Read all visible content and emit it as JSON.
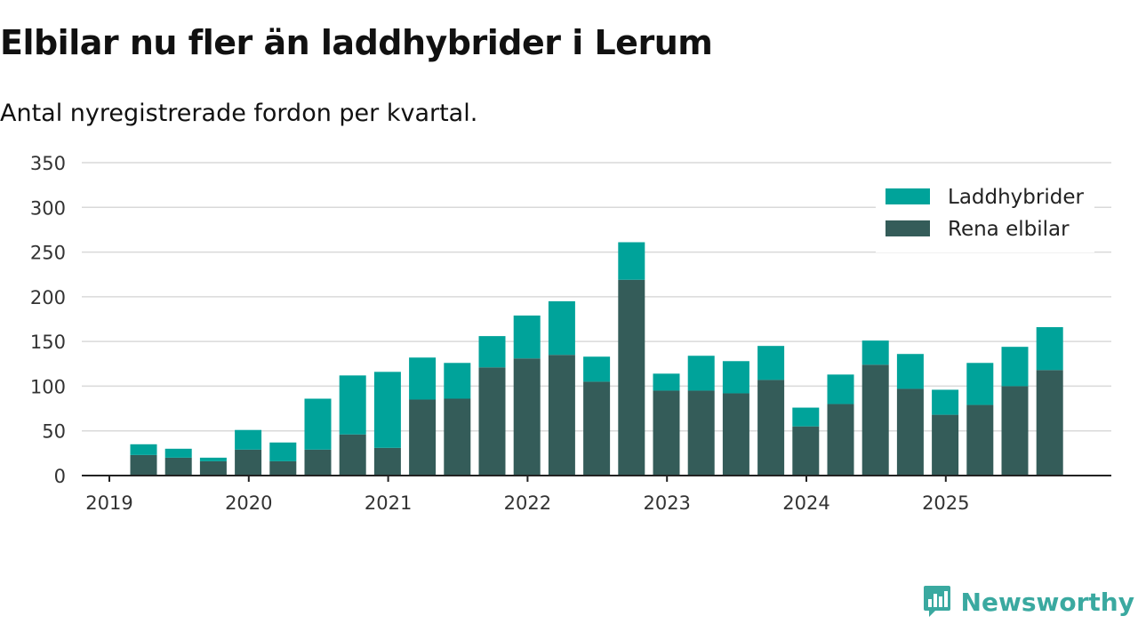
{
  "title": "Elbilar nu fler än laddhybrider i Lerum",
  "subtitle": "Antal nyregistrerade fordon per kvartal.",
  "brand": "Newsworthy",
  "colors": {
    "laddhybrider": "#00a39a",
    "elbilar": "#345c59",
    "grid": "#d9d9d9",
    "axis": "#222222",
    "brand": "#3aa9a0"
  },
  "chart_data": {
    "type": "bar",
    "stacked": true,
    "categories": [
      "2019 Q2",
      "2019 Q3",
      "2019 Q4",
      "2020 Q1",
      "2020 Q2",
      "2020 Q3",
      "2020 Q4",
      "2021 Q1",
      "2021 Q2",
      "2021 Q3",
      "2021 Q4",
      "2022 Q1",
      "2022 Q2",
      "2022 Q3",
      "2022 Q4",
      "2023 Q1",
      "2023 Q2",
      "2023 Q3",
      "2023 Q4",
      "2024 Q1",
      "2024 Q2",
      "2024 Q3",
      "2024 Q4",
      "2025 Q1",
      "2025 Q2",
      "2025 Q3",
      "2025 Q4"
    ],
    "series": [
      {
        "name": "Rena elbilar",
        "values": [
          23,
          20,
          16,
          29,
          16,
          29,
          46,
          31,
          85,
          86,
          121,
          131,
          135,
          105,
          219,
          95,
          95,
          92,
          107,
          55,
          80,
          124,
          97,
          68,
          79,
          100,
          118
        ]
      },
      {
        "name": "Laddhybrider",
        "values": [
          12,
          10,
          4,
          22,
          21,
          57,
          66,
          85,
          47,
          40,
          35,
          48,
          60,
          28,
          42,
          19,
          39,
          36,
          38,
          21,
          33,
          27,
          39,
          28,
          47,
          44,
          48
        ]
      }
    ],
    "x_tick_labels": [
      "2019",
      "2020",
      "2021",
      "2022",
      "2023",
      "2024",
      "2025"
    ],
    "y_ticks": [
      0,
      50,
      100,
      150,
      200,
      250,
      300,
      350
    ],
    "ylim": [
      0,
      350
    ],
    "legend": {
      "position": "top-right",
      "order": [
        "Laddhybrider",
        "Rena elbilar"
      ]
    }
  }
}
